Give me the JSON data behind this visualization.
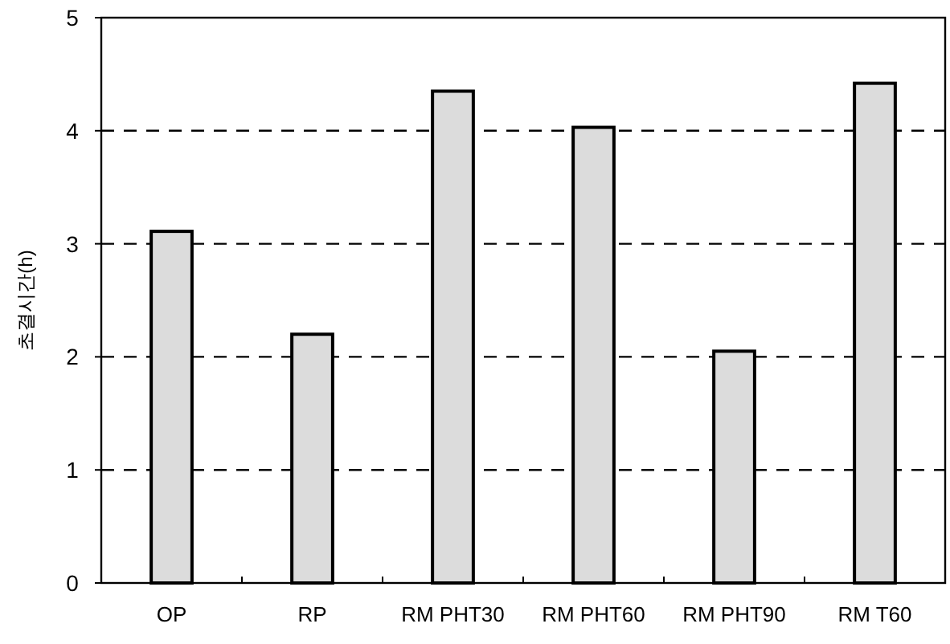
{
  "chart_data": {
    "type": "bar",
    "ylabel": "초결시간(h)",
    "categories": [
      "OP",
      "RP",
      "RM PHT30",
      "RM PHT60",
      "RM PHT90",
      "RM T60"
    ],
    "values": [
      3.11,
      2.2,
      4.35,
      4.03,
      2.05,
      4.42
    ],
    "color": "#dcdcdc",
    "ylim": [
      0,
      5
    ],
    "yticks": [
      0,
      1,
      2,
      3,
      4,
      5
    ],
    "grid": "y",
    "line_style": "dashed"
  }
}
